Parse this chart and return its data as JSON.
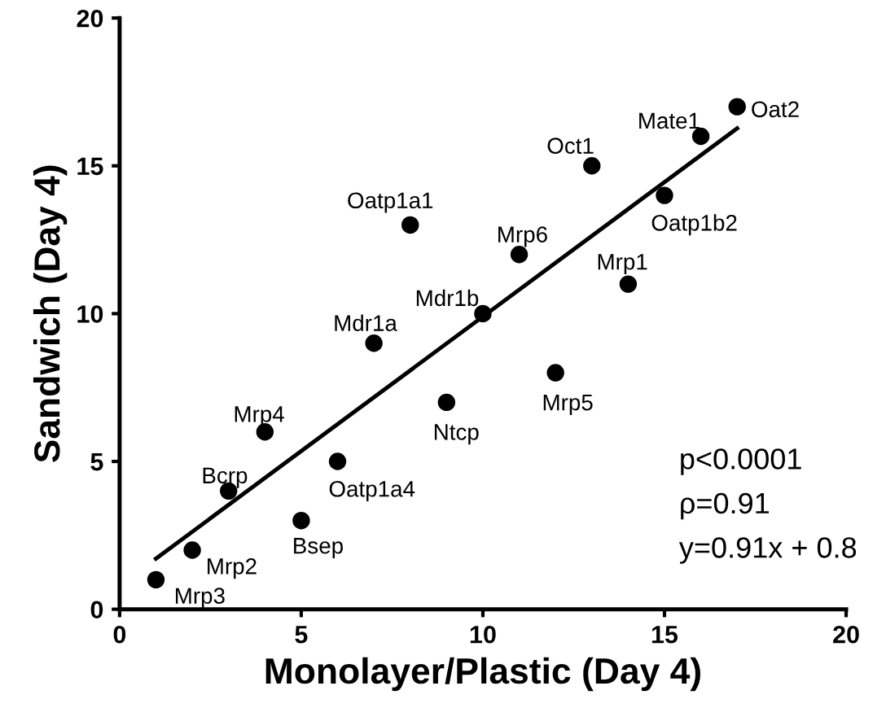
{
  "chart_data": {
    "type": "scatter",
    "xlabel": "Monolayer/Plastic (Day 4)",
    "ylabel": "Sandwich (Day 4)",
    "xlim": [
      0,
      20
    ],
    "ylim": [
      0,
      20
    ],
    "xticks": [
      0,
      5,
      10,
      15,
      20
    ],
    "yticks": [
      0,
      5,
      10,
      15,
      20
    ],
    "grid": false,
    "series": [
      {
        "marker": "circle",
        "color": "#000000",
        "x": [
          1,
          2,
          3,
          4,
          5,
          6,
          7,
          8,
          9,
          10,
          11,
          12,
          13,
          14,
          15,
          16,
          17
        ],
        "values": [
          1,
          2,
          4,
          6,
          3,
          5,
          9,
          13,
          7,
          10,
          12,
          8,
          15,
          11,
          14,
          16,
          17
        ]
      },
      {
        "type": "line",
        "marker": "none",
        "color": "#000000",
        "x": [
          1,
          17
        ],
        "values": [
          1.71,
          16.27
        ]
      }
    ],
    "annotations": [
      {
        "text": "Mrp3",
        "x": 1,
        "y": 1
      },
      {
        "text": "Mrp2",
        "x": 2,
        "y": 2
      },
      {
        "text": "Bcrp",
        "x": 3,
        "y": 4
      },
      {
        "text": "Mrp4",
        "x": 4,
        "y": 6
      },
      {
        "text": "Bsep",
        "x": 5,
        "y": 3
      },
      {
        "text": "Oatp1a4",
        "x": 6,
        "y": 5
      },
      {
        "text": "Mdr1a",
        "x": 7,
        "y": 9
      },
      {
        "text": "Oatp1a1",
        "x": 8,
        "y": 13
      },
      {
        "text": "Ntcp",
        "x": 9,
        "y": 7
      },
      {
        "text": "Mdr1b",
        "x": 10,
        "y": 10
      },
      {
        "text": "Mrp6",
        "x": 11,
        "y": 12
      },
      {
        "text": "Mrp5",
        "x": 12,
        "y": 8
      },
      {
        "text": "Oct1",
        "x": 13,
        "y": 15
      },
      {
        "text": "Mrp1",
        "x": 14,
        "y": 11
      },
      {
        "text": "Oatp1b2",
        "x": 15,
        "y": 14
      },
      {
        "text": "Mate1",
        "x": 16,
        "y": 16
      },
      {
        "text": "Oat2",
        "x": 17,
        "y": 17
      },
      "p<0.0001",
      "ρ=0.91",
      "y=0.91x + 0.8"
    ]
  }
}
